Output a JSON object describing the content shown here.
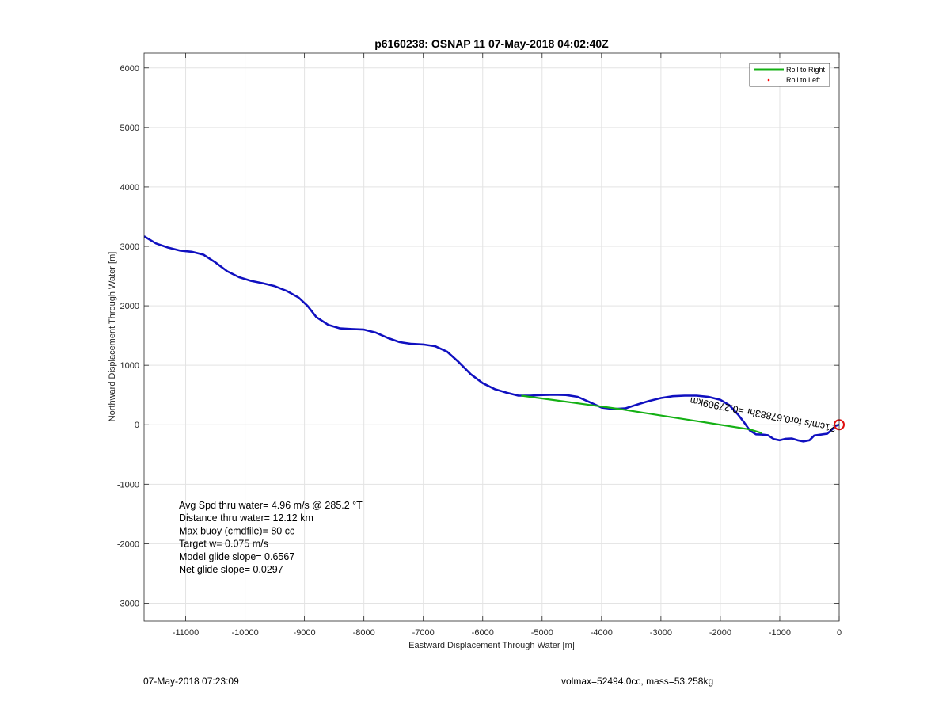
{
  "chart_data": {
    "type": "line",
    "title": "p6160238: OSNAP 11 07-May-2018 04:02:40Z",
    "xlabel": "Eastward Displacement Through Water [m]",
    "ylabel": "Northward Displacement Through Water [m]",
    "xlim": [
      -11700,
      0
    ],
    "ylim": [
      -3300,
      6250
    ],
    "xticks": [
      -11000,
      -10000,
      -9000,
      -8000,
      -7000,
      -6000,
      -5000,
      -4000,
      -3000,
      -2000,
      -1000,
      0
    ],
    "yticks": [
      -3000,
      -2000,
      -1000,
      0,
      1000,
      2000,
      3000,
      4000,
      5000,
      6000
    ],
    "grid": true,
    "legend_position": "top-right",
    "legend": [
      "Roll to Right",
      "Roll to Left"
    ],
    "series": [
      {
        "name": "track",
        "color": "#1010c0",
        "points": [
          [
            -11700,
            3170
          ],
          [
            -11500,
            3050
          ],
          [
            -11300,
            2980
          ],
          [
            -11100,
            2930
          ],
          [
            -10900,
            2910
          ],
          [
            -10700,
            2860
          ],
          [
            -10500,
            2730
          ],
          [
            -10300,
            2580
          ],
          [
            -10100,
            2480
          ],
          [
            -9900,
            2420
          ],
          [
            -9700,
            2380
          ],
          [
            -9500,
            2330
          ],
          [
            -9300,
            2250
          ],
          [
            -9100,
            2140
          ],
          [
            -8950,
            2000
          ],
          [
            -8800,
            1810
          ],
          [
            -8600,
            1680
          ],
          [
            -8400,
            1620
          ],
          [
            -8200,
            1610
          ],
          [
            -8000,
            1600
          ],
          [
            -7800,
            1550
          ],
          [
            -7600,
            1460
          ],
          [
            -7400,
            1390
          ],
          [
            -7200,
            1360
          ],
          [
            -7000,
            1350
          ],
          [
            -6800,
            1320
          ],
          [
            -6600,
            1230
          ],
          [
            -6400,
            1050
          ],
          [
            -6200,
            850
          ],
          [
            -6000,
            700
          ],
          [
            -5800,
            600
          ],
          [
            -5600,
            540
          ],
          [
            -5400,
            490
          ],
          [
            -5200,
            490
          ],
          [
            -5000,
            500
          ],
          [
            -4800,
            505
          ],
          [
            -4600,
            500
          ],
          [
            -4400,
            470
          ],
          [
            -4200,
            380
          ],
          [
            -4000,
            290
          ],
          [
            -3800,
            265
          ],
          [
            -3600,
            275
          ],
          [
            -3400,
            340
          ],
          [
            -3200,
            400
          ],
          [
            -3000,
            450
          ],
          [
            -2800,
            480
          ],
          [
            -2600,
            490
          ],
          [
            -2400,
            490
          ],
          [
            -2200,
            470
          ],
          [
            -2000,
            420
          ],
          [
            -1850,
            330
          ],
          [
            -1700,
            170
          ],
          [
            -1600,
            40
          ],
          [
            -1500,
            -100
          ],
          [
            -1400,
            -160
          ],
          [
            -1300,
            -165
          ],
          [
            -1200,
            -175
          ],
          [
            -1100,
            -240
          ],
          [
            -1000,
            -260
          ],
          [
            -900,
            -235
          ],
          [
            -800,
            -230
          ],
          [
            -700,
            -260
          ],
          [
            -600,
            -280
          ],
          [
            -500,
            -260
          ],
          [
            -420,
            -180
          ],
          [
            -300,
            -165
          ],
          [
            -200,
            -150
          ],
          [
            -120,
            -80
          ],
          [
            -60,
            -20
          ],
          [
            -20,
            -5
          ],
          [
            0,
            0
          ]
        ]
      },
      {
        "name": "Roll to Right",
        "color": "#14b014",
        "points": [
          [
            -5350,
            490
          ],
          [
            -3700,
            265
          ],
          [
            -1500,
            -80
          ],
          [
            -1300,
            -140
          ]
        ]
      },
      {
        "name": "Roll to Left",
        "color": "#ff0000",
        "points": []
      }
    ],
    "current_label": "21cm/s for0.67883hr =0.27909km",
    "start_marker": [
      0,
      0
    ],
    "annotations": [
      "Avg Spd thru water=  4.96 m/s @ 285.2 °T",
      "Distance thru water= 12.12 km",
      "Max buoy (cmdfile)= 80 cc",
      "Target w= 0.075 m/s",
      "Model glide slope= 0.6567",
      "Net glide slope= 0.0297"
    ]
  },
  "footer": {
    "left": "07-May-2018 07:23:09",
    "right": "volmax=52494.0cc, mass=53.258kg"
  }
}
